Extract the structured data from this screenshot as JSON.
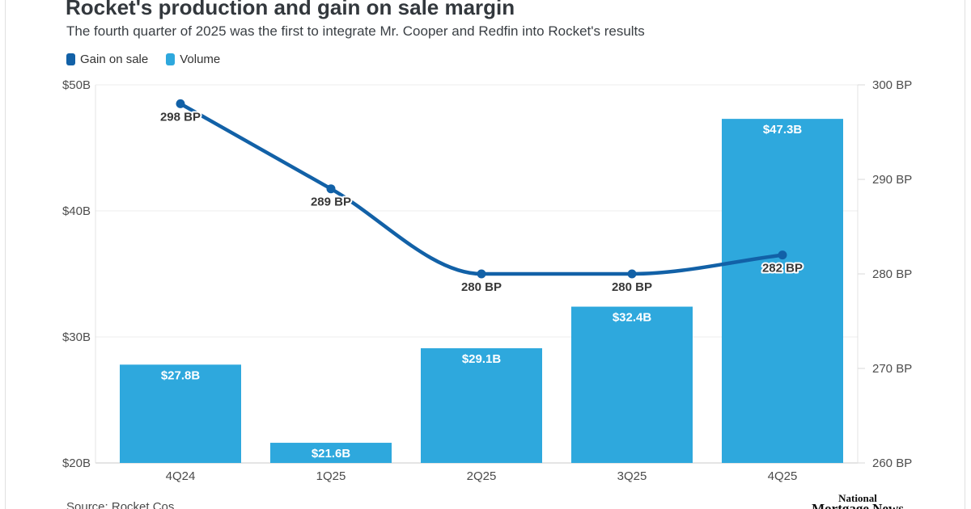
{
  "header": {
    "title": "Rocket's production and gain on sale margin",
    "subtitle": "The fourth quarter of 2025 was the first to integrate Mr. Cooper and Redfin into Rocket's results"
  },
  "legend": [
    {
      "label": "Gain on sale",
      "color": "#1261A7"
    },
    {
      "label": "Volume",
      "color": "#2EA8DD"
    }
  ],
  "footer": {
    "source": "Source: Rocket Cos.",
    "publisher_line1": "National",
    "publisher_line2": "Mortgage News"
  },
  "colors": {
    "bar": "#2EA8DD",
    "line": "#1261A7",
    "gridline": "#ececec",
    "baseline": "#c9c9c9",
    "axis_border": "#e3e3e3",
    "tick_stub": "#d9d9d9"
  },
  "chart_data": {
    "type": "combo",
    "title": "Rocket's production and gain on sale margin",
    "categories": [
      "4Q24",
      "1Q25",
      "2Q25",
      "3Q25",
      "4Q25"
    ],
    "series": [
      {
        "name": "Volume",
        "type": "bar",
        "axis": "left",
        "color": "#2EA8DD",
        "values": [
          27.8,
          21.6,
          29.1,
          32.4,
          47.3
        ],
        "labels": [
          "$27.8B",
          "$21.6B",
          "$29.1B",
          "$32.4B",
          "$47.3B"
        ]
      },
      {
        "name": "Gain on sale",
        "type": "line",
        "axis": "right",
        "color": "#1261A7",
        "values": [
          298,
          289,
          280,
          280,
          282
        ],
        "labels": [
          "298 BP",
          "289 BP",
          "280 BP",
          "280 BP",
          "282 BP"
        ]
      }
    ],
    "left_axis": {
      "unit": "$B",
      "min": 20,
      "max": 50,
      "ticks": [
        50,
        40,
        30,
        20
      ],
      "tick_labels": [
        "$50B",
        "$40B",
        "$30B",
        "$20B"
      ]
    },
    "right_axis": {
      "unit": "BP",
      "min": 260,
      "max": 300,
      "ticks": [
        300,
        290,
        280,
        270,
        260
      ],
      "tick_labels": [
        "300 BP",
        "290 BP",
        "280 BP",
        "270 BP",
        "260 BP"
      ]
    },
    "grid": true,
    "legend_position": "top-left"
  }
}
